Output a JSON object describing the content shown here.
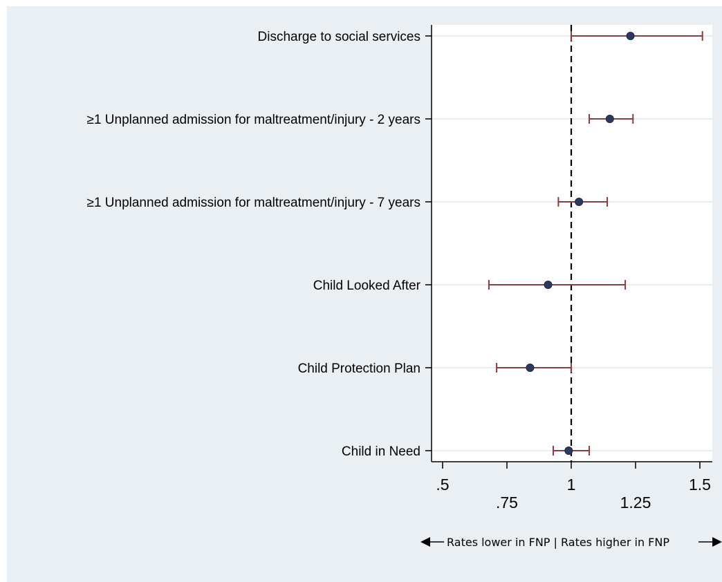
{
  "chart_data": {
    "type": "forest",
    "xlim": [
      0.5,
      1.55
    ],
    "xticks": [
      {
        "value": 0.5,
        "label": ".5",
        "row": 1
      },
      {
        "value": 0.75,
        "label": ".75",
        "row": 2
      },
      {
        "value": 1,
        "label": "1",
        "row": 1
      },
      {
        "value": 1.25,
        "label": "1.25",
        "row": 2
      },
      {
        "value": 1.5,
        "label": "1.5",
        "row": 1
      }
    ],
    "reference_line": 1,
    "grid": "horizontal",
    "colors": {
      "background": "#e9eff2",
      "plot_background": "#ffffff",
      "gridline": "#e3eef2",
      "ci": "#8e3a3f",
      "point": "#2b3a5e"
    },
    "rows": [
      {
        "label": "Discharge to social services",
        "estimate": 1.23,
        "lower": 1.0,
        "upper": 1.51
      },
      {
        "label": "≥1 Unplanned admission for maltreatment/injury - 2 years",
        "estimate": 1.15,
        "lower": 1.07,
        "upper": 1.24
      },
      {
        "label": "≥1 Unplanned admission for maltreatment/injury - 7 years",
        "estimate": 1.03,
        "lower": 0.95,
        "upper": 1.14
      },
      {
        "label": "Child Looked After",
        "estimate": 0.91,
        "lower": 0.68,
        "upper": 1.21
      },
      {
        "label": "Child Protection Plan",
        "estimate": 0.84,
        "lower": 0.71,
        "upper": 1.0
      },
      {
        "label": "Child in Need",
        "estimate": 0.99,
        "lower": 0.93,
        "upper": 1.07
      }
    ]
  },
  "footer": {
    "text": "Rates lower in FNP  |  Rates higher in FNP"
  }
}
